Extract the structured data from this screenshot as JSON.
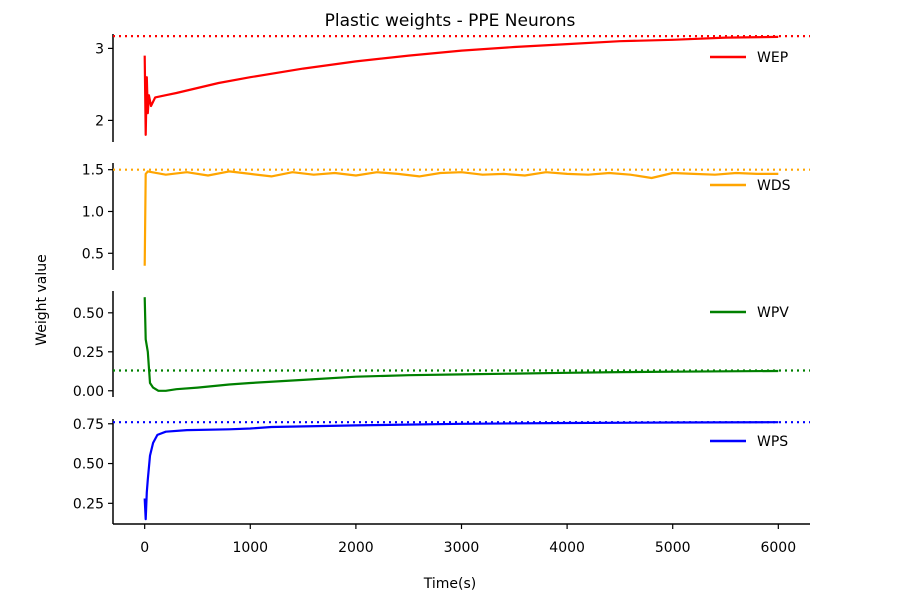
{
  "chart_data": {
    "type": "line",
    "title": "Plastic weights - PPE Neurons",
    "xlabel": "Time(s)",
    "ylabel": "Weight value",
    "xlim": [
      -300,
      6300
    ],
    "xticks": [
      0,
      1000,
      2000,
      3000,
      4000,
      5000,
      6000
    ],
    "xtick_labels": [
      "0",
      "1000",
      "2000",
      "3000",
      "4000",
      "5000",
      "6000"
    ],
    "legend_placement": "right",
    "grid": false,
    "panels": [
      {
        "name": "WEP",
        "color": "#ff0000",
        "ylim": [
          1.7,
          3.2
        ],
        "yticks": [
          2,
          3
        ],
        "ytick_labels": [
          "2",
          "3"
        ],
        "target": 3.17,
        "x": [
          0,
          10,
          20,
          30,
          40,
          60,
          100,
          200,
          300,
          500,
          700,
          1000,
          1500,
          2000,
          2500,
          3000,
          3500,
          4000,
          4500,
          5000,
          5500,
          6000
        ],
        "y": [
          2.9,
          1.8,
          2.6,
          2.1,
          2.35,
          2.2,
          2.32,
          2.35,
          2.38,
          2.45,
          2.52,
          2.6,
          2.72,
          2.82,
          2.9,
          2.97,
          3.02,
          3.06,
          3.1,
          3.12,
          3.15,
          3.16
        ]
      },
      {
        "name": "WDS",
        "color": "#ffa500",
        "ylim": [
          0.3,
          1.58
        ],
        "yticks": [
          0.5,
          1.0,
          1.5
        ],
        "ytick_labels": [
          "0.5",
          "1.0",
          "1.5"
        ],
        "target": 1.5,
        "x": [
          0,
          10,
          30,
          200,
          400,
          600,
          800,
          1000,
          1200,
          1400,
          1600,
          1800,
          2000,
          2200,
          2400,
          2600,
          2800,
          3000,
          3200,
          3400,
          3600,
          3800,
          4000,
          4200,
          4400,
          4600,
          4800,
          5000,
          5200,
          5400,
          5600,
          5800,
          6000
        ],
        "y": [
          0.35,
          1.45,
          1.48,
          1.44,
          1.47,
          1.43,
          1.48,
          1.45,
          1.42,
          1.47,
          1.44,
          1.46,
          1.43,
          1.47,
          1.45,
          1.42,
          1.46,
          1.47,
          1.44,
          1.45,
          1.43,
          1.47,
          1.45,
          1.44,
          1.46,
          1.44,
          1.4,
          1.46,
          1.45,
          1.44,
          1.46,
          1.45,
          1.45
        ]
      },
      {
        "name": "WPV",
        "color": "#008000",
        "ylim": [
          -0.04,
          0.64
        ],
        "yticks": [
          0.0,
          0.25,
          0.5
        ],
        "ytick_labels": [
          "0.00",
          "0.25",
          "0.50"
        ],
        "target": 0.13,
        "x": [
          0,
          10,
          30,
          50,
          80,
          130,
          200,
          300,
          500,
          800,
          1000,
          1500,
          2000,
          2500,
          3000,
          3500,
          4000,
          4500,
          5000,
          5500,
          6000
        ],
        "y": [
          0.6,
          0.33,
          0.25,
          0.05,
          0.02,
          0.0,
          0.0,
          0.01,
          0.02,
          0.04,
          0.05,
          0.07,
          0.09,
          0.1,
          0.105,
          0.11,
          0.115,
          0.12,
          0.122,
          0.125,
          0.127
        ]
      },
      {
        "name": "WPS",
        "color": "#0000ff",
        "ylim": [
          0.12,
          0.78
        ],
        "yticks": [
          0.25,
          0.5,
          0.75
        ],
        "ytick_labels": [
          "0.25",
          "0.50",
          "0.75"
        ],
        "target": 0.76,
        "x": [
          0,
          10,
          20,
          30,
          50,
          80,
          120,
          200,
          400,
          800,
          1000,
          1200,
          2000,
          3000,
          4000,
          5000,
          6000
        ],
        "y": [
          0.28,
          0.15,
          0.32,
          0.4,
          0.55,
          0.63,
          0.68,
          0.7,
          0.71,
          0.715,
          0.72,
          0.73,
          0.74,
          0.75,
          0.755,
          0.758,
          0.76
        ]
      }
    ]
  }
}
